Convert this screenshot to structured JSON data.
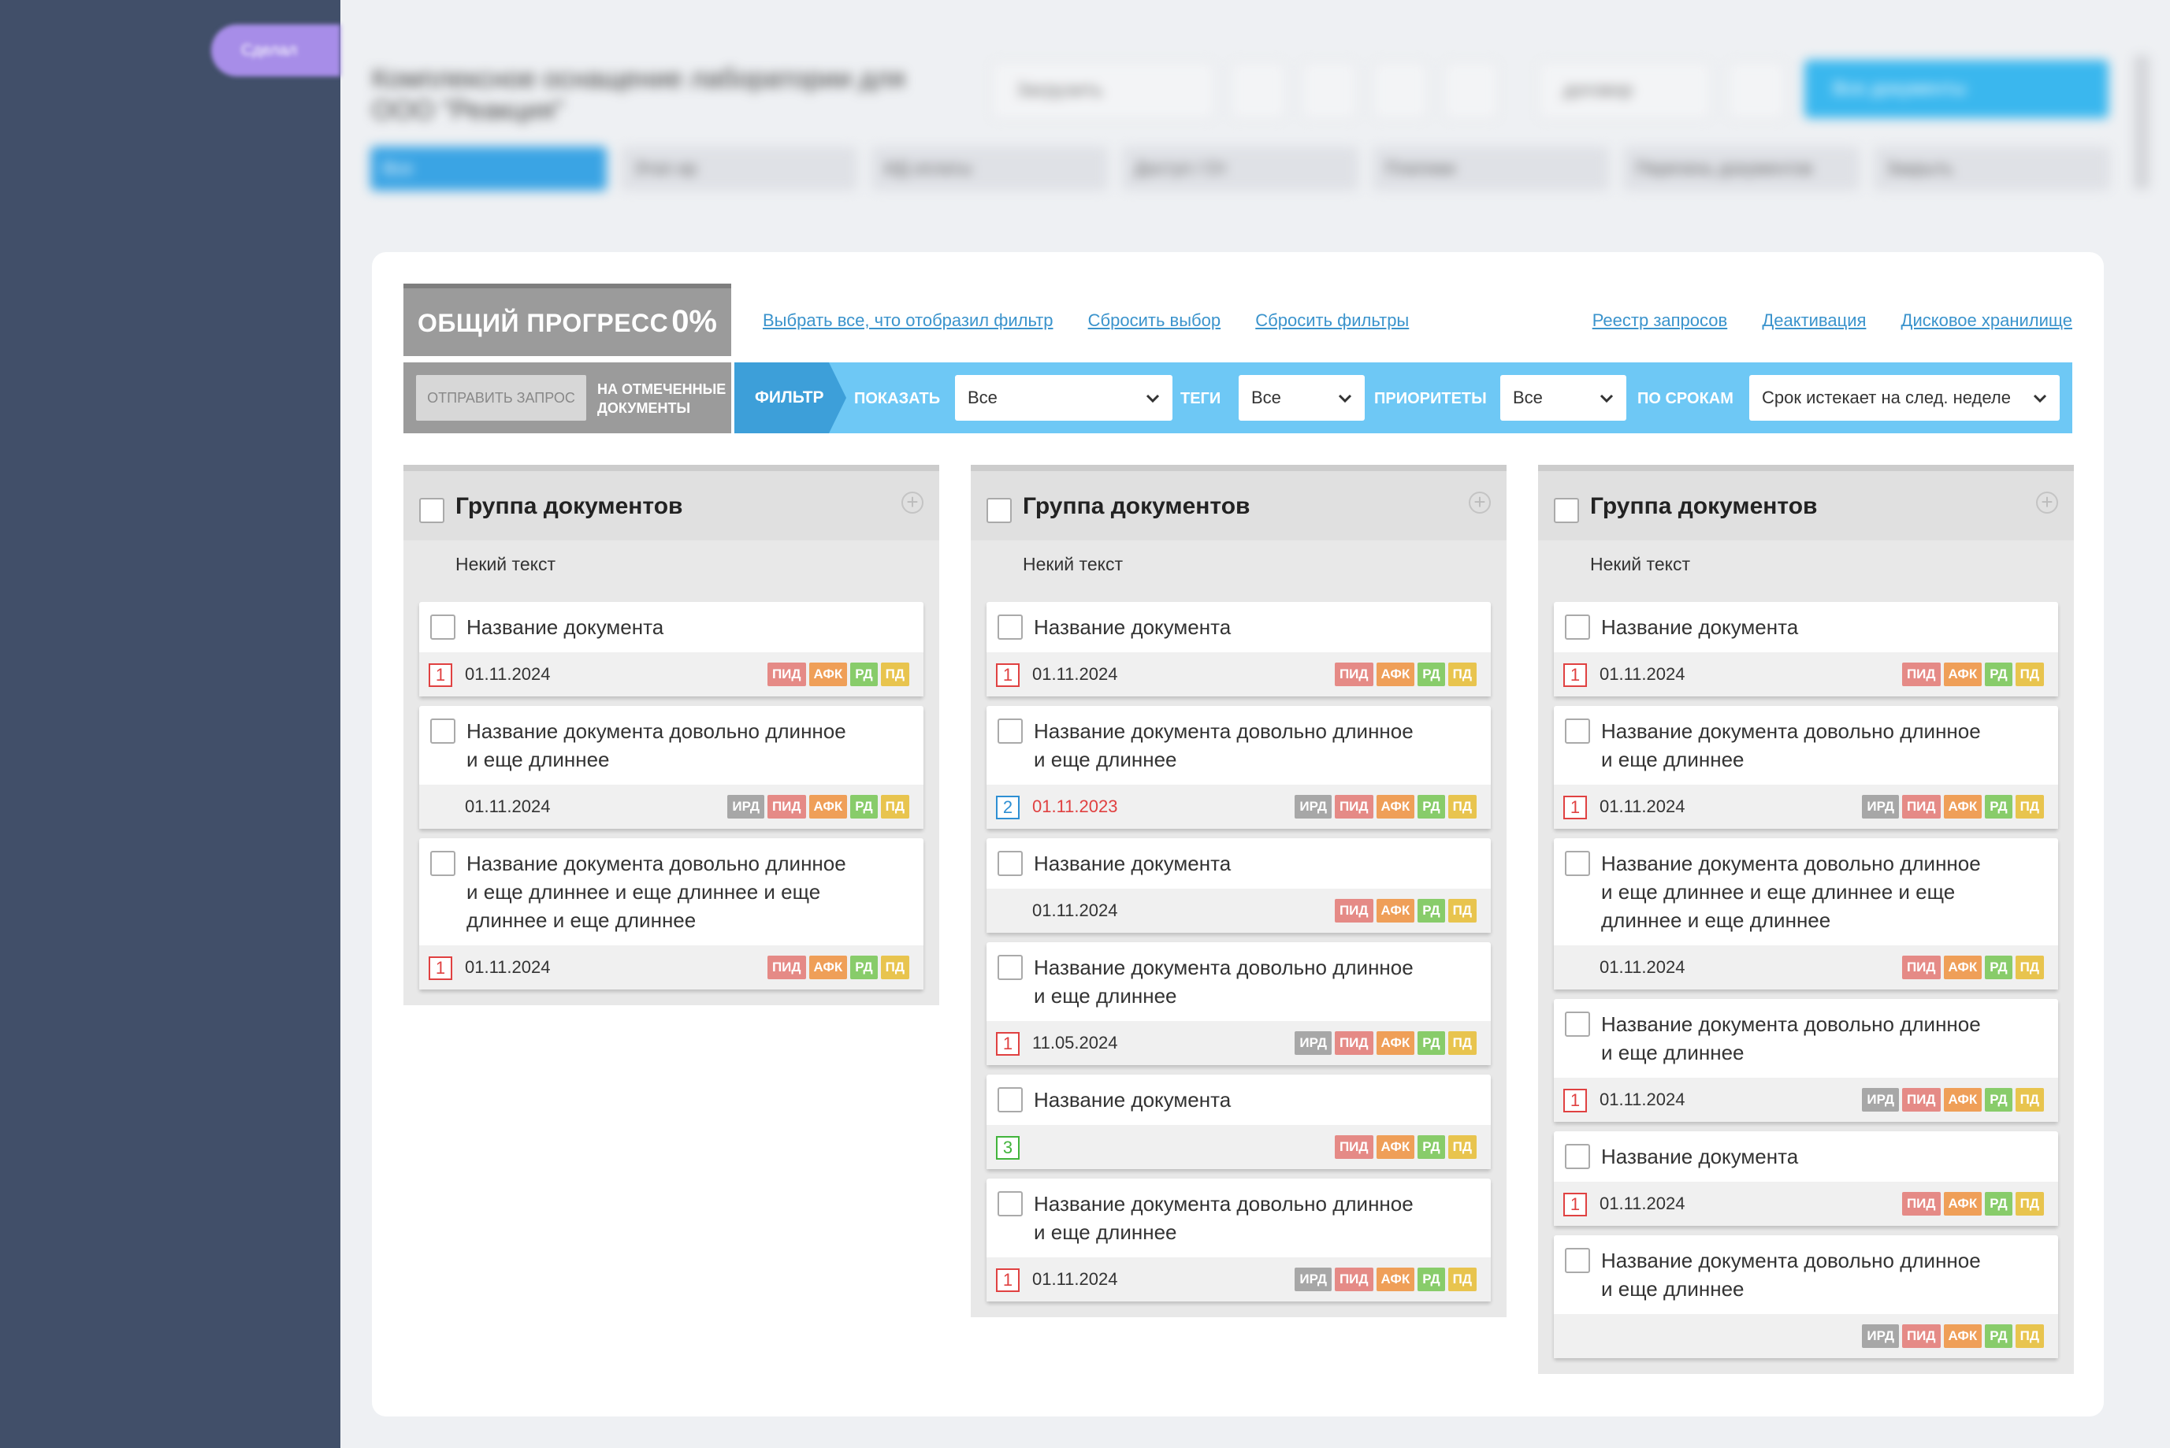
{
  "colors": {
    "sidebar": "#414f69",
    "accent_pill": "#a78de8",
    "filter_bar": "#6ec8f5",
    "filter_tag": "#3d9fd9",
    "tag_ird": "#a7a7a7",
    "tag_pid": "#e58a86",
    "tag_afk": "#ef9f58",
    "tag_rd": "#88cc6a",
    "tag_pd": "#e8c44e"
  },
  "header": {
    "pill_label": "Сделал",
    "title": "Комплексное оснащение лаборатории для ООО \"Реакция\"",
    "select_label": "Загрузить",
    "user_label": "договор",
    "main_button": "Все документы",
    "tabs": [
      "Все",
      "Этап ир",
      "ИД оплаты",
      "Доступ / От",
      "Платежи",
      "Перечень документов",
      "Закрыть"
    ]
  },
  "progress": {
    "label": "ОБЩИЙ ПРОГРЕСС",
    "value": "0%"
  },
  "links_left": [
    "Выбрать все, что отобразил фильтр",
    "Сбросить выбор",
    "Сбросить фильтры"
  ],
  "links_right": [
    "Реестр запросов",
    "Деактивация",
    "Дисковое хранилище"
  ],
  "send": {
    "button": "ОТПРАВИТЬ ЗАПРОС",
    "note_line1": "НА ОТМЕЧЕННЫЕ",
    "note_line2": "ДОКУМЕНТЫ"
  },
  "filter": {
    "tag": "ФИЛЬТР",
    "show_label": "ПОКАЗАТЬ",
    "show_value": "Все",
    "tags_label": "ТЕГИ",
    "tags_value": "Все",
    "priorities_label": "ПРИОРИТЕТЫ",
    "priorities_value": "Все",
    "deadline_label": "ПО СРОКАМ",
    "deadline_value": "Срок истекает на след. неделе"
  },
  "columns": [
    {
      "title": "Группа документов",
      "subtitle": "Некий текст",
      "docs": [
        {
          "lines": [
            "Название документа"
          ],
          "priority": "1",
          "date": "01.11.2024",
          "overdue": false,
          "tags": [
            "ПИД",
            "АФК",
            "РД",
            "ПД"
          ]
        },
        {
          "lines": [
            "Название документа довольно длинное",
            "и еще длиннее"
          ],
          "priority": "",
          "date": "01.11.2024",
          "overdue": false,
          "tags": [
            "ИРД",
            "ПИД",
            "АФК",
            "РД",
            "ПД"
          ]
        },
        {
          "lines": [
            "Название документа довольно длинное",
            "и еще длиннее и еще длиннее и еще",
            "длиннее и еще длиннее"
          ],
          "priority": "1",
          "date": "01.11.2024",
          "overdue": false,
          "tags": [
            "ПИД",
            "АФК",
            "РД",
            "ПД"
          ]
        }
      ]
    },
    {
      "title": "Группа документов",
      "subtitle": "Некий текст",
      "docs": [
        {
          "lines": [
            "Название документа"
          ],
          "priority": "1",
          "date": "01.11.2024",
          "overdue": false,
          "tags": [
            "ПИД",
            "АФК",
            "РД",
            "ПД"
          ]
        },
        {
          "lines": [
            "Название документа довольно длинное",
            "и еще длиннее"
          ],
          "priority": "2",
          "date": "01.11.2023",
          "overdue": true,
          "tags": [
            "ИРД",
            "ПИД",
            "АФК",
            "РД",
            "ПД"
          ]
        },
        {
          "lines": [
            "Название документа"
          ],
          "priority": "",
          "date": "01.11.2024",
          "overdue": false,
          "tags": [
            "ПИД",
            "АФК",
            "РД",
            "ПД"
          ]
        },
        {
          "lines": [
            "Название документа довольно длинное",
            "и еще длиннее"
          ],
          "priority": "1",
          "date": "11.05.2024",
          "overdue": false,
          "tags": [
            "ИРД",
            "ПИД",
            "АФК",
            "РД",
            "ПД"
          ]
        },
        {
          "lines": [
            "Название документа"
          ],
          "priority": "3",
          "date": "",
          "overdue": false,
          "tags": [
            "ПИД",
            "АФК",
            "РД",
            "ПД"
          ]
        },
        {
          "lines": [
            "Название документа довольно длинное",
            "и еще длиннее"
          ],
          "priority": "1",
          "date": "01.11.2024",
          "overdue": false,
          "tags": [
            "ИРД",
            "ПИД",
            "АФК",
            "РД",
            "ПД"
          ]
        }
      ]
    },
    {
      "title": "Группа документов",
      "subtitle": "Некий текст",
      "docs": [
        {
          "lines": [
            "Название документа"
          ],
          "priority": "1",
          "date": "01.11.2024",
          "overdue": false,
          "tags": [
            "ПИД",
            "АФК",
            "РД",
            "ПД"
          ]
        },
        {
          "lines": [
            "Название документа довольно длинное",
            "и еще длиннее"
          ],
          "priority": "1",
          "date": "01.11.2024",
          "overdue": false,
          "tags": [
            "ИРД",
            "ПИД",
            "АФК",
            "РД",
            "ПД"
          ]
        },
        {
          "lines": [
            "Название документа довольно длинное",
            "и еще длиннее и еще длиннее и еще",
            "длиннее и еще длиннее"
          ],
          "priority": "",
          "date": "01.11.2024",
          "overdue": false,
          "tags": [
            "ПИД",
            "АФК",
            "РД",
            "ПД"
          ]
        },
        {
          "lines": [
            "Название документа довольно длинное",
            "и еще длиннее"
          ],
          "priority": "1",
          "date": "01.11.2024",
          "overdue": false,
          "tags": [
            "ИРД",
            "ПИД",
            "АФК",
            "РД",
            "ПД"
          ]
        },
        {
          "lines": [
            "Название документа"
          ],
          "priority": "1",
          "date": "01.11.2024",
          "overdue": false,
          "tags": [
            "ПИД",
            "АФК",
            "РД",
            "ПД"
          ]
        },
        {
          "lines": [
            "Название документа довольно длинное",
            "и еще длиннее"
          ],
          "priority": "",
          "date": "",
          "overdue": false,
          "tags": [
            "ИРД",
            "ПИД",
            "АФК",
            "РД",
            "ПД"
          ]
        }
      ]
    }
  ]
}
